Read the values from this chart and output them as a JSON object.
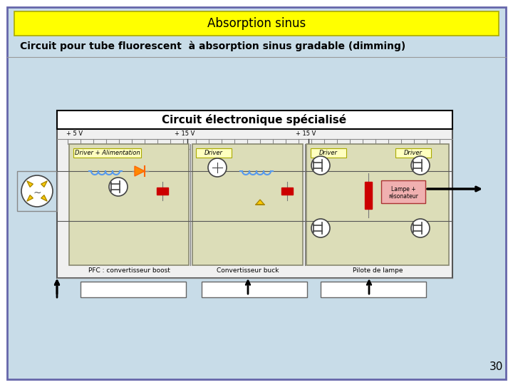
{
  "title_box": "Absorption sinus",
  "subtitle": "Circuit pour tube fluorescent  à absorption sinus gradable (dimming)",
  "circuit_title": "Circuit électronique spécialisé",
  "page_number": "30",
  "slide_bg": "#FFFFFF",
  "content_bg": "#C8DCE8",
  "title_bg": "#FFFF00",
  "title_fg": "#000000",
  "subtitle_fg": "#000000",
  "subtitle_bold": true,
  "circuit_title_fg": "#000000",
  "panel_bg": "#DCDDB8",
  "panel_border": "#888870",
  "driver_label_bg": "#FFFFC0",
  "driver_label_border": "#AAAA00",
  "lampe_bg": "#F0B0B0",
  "capacitor_color": "#CC0000",
  "coil_color": "#5599EE",
  "fig_bg": "#FFFFFF",
  "content_border": "#6666AA",
  "circuit_outer_bg": "#F0F0F0"
}
